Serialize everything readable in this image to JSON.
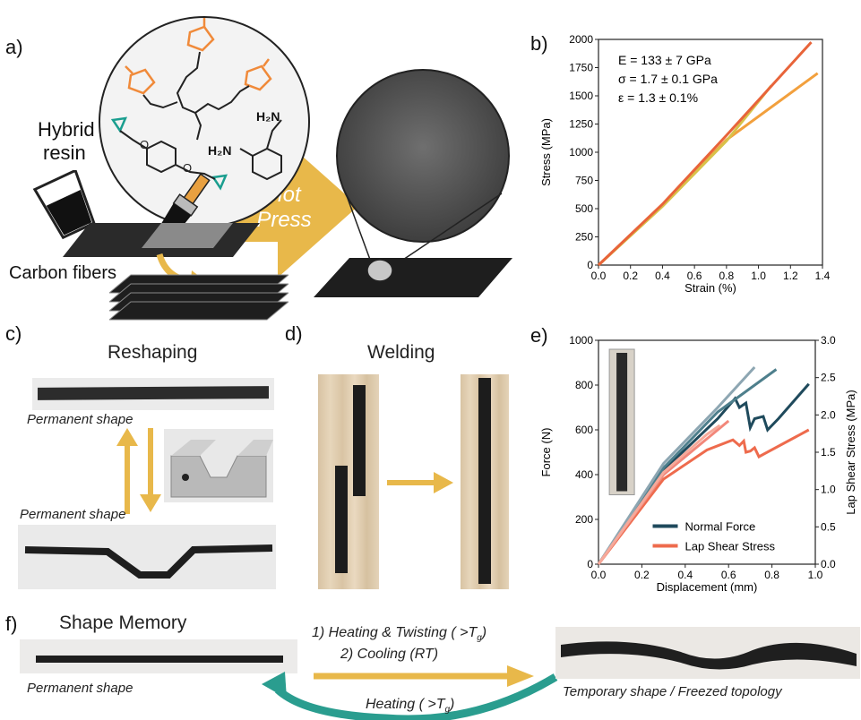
{
  "panels": {
    "a": {
      "label": "a)",
      "hybrid_resin_line1": "Hybrid",
      "hybrid_resin_line2": "resin",
      "carbon_fibers": "Carbon fibers",
      "hot_press_line1": "Hot",
      "hot_press_line2": "Press",
      "nh2_a": "H₂N",
      "nh2_b": "H₂N"
    },
    "b": {
      "label": "b)"
    },
    "c": {
      "label": "c)",
      "title": "Reshaping",
      "caption_top": "Permanent shape",
      "caption_bottom": "Permanent shape"
    },
    "d": {
      "label": "d)",
      "title": "Welding"
    },
    "e": {
      "label": "e)"
    },
    "f": {
      "label": "f)",
      "title": "Shape Memory",
      "step1": "1)  Heating & Twisting ( >T",
      "step2": "2)  Cooling (RT)",
      "return_label": "Heating ( >T",
      "sub_g": "g",
      "close_paren": ")",
      "caption_left": "Permanent shape",
      "caption_right": "Temporary shape / Freezed topology"
    }
  },
  "colors": {
    "orange_chem": "#f08a3a",
    "teal_chem": "#1a9e8f",
    "gold_arrow": "#e8b84a",
    "teal_arrow": "#2a9d8f",
    "navy": "#1f4a5c",
    "salmon": "#ee6b4d"
  },
  "chart_data": [
    {
      "type": "line",
      "xlabel": "Strain (%)",
      "ylabel": "Stress (MPa)",
      "xlim": [
        0.0,
        1.4
      ],
      "ylim": [
        0,
        2000
      ],
      "xticks": [
        "0.0",
        "0.2",
        "0.4",
        "0.6",
        "0.8",
        "1.0",
        "1.2",
        "1.4"
      ],
      "yticks": [
        "0",
        "250",
        "500",
        "750",
        "1000",
        "1250",
        "1500",
        "1750",
        "2000"
      ],
      "annotations": [
        "E = 133 ± 7 GPa",
        "σ = 1.7 ± 0.1 GPa",
        "ε = 1.3 ± 0.1%"
      ],
      "series": [
        {
          "color": "#f2a03d",
          "points": [
            [
              0,
              0
            ],
            [
              0.4,
              530
            ],
            [
              0.8,
              1110
            ],
            [
              1.37,
              1700
            ]
          ]
        },
        {
          "color": "#d8c24a",
          "points": [
            [
              0,
              0
            ],
            [
              0.4,
              520
            ],
            [
              0.8,
              1100
            ],
            [
              1.08,
              1590
            ]
          ]
        },
        {
          "color": "#e8643a",
          "points": [
            [
              0,
              0
            ],
            [
              0.4,
              540
            ],
            [
              0.8,
              1150
            ],
            [
              1.33,
              1975
            ]
          ]
        }
      ]
    },
    {
      "type": "line",
      "xlabel": "Displacement (mm)",
      "ylabel": "Force (N)",
      "ylabel_right": "Lap Shear Stress (MPa)",
      "xlim": [
        0.0,
        1.0
      ],
      "ylim": [
        0,
        1000
      ],
      "ylim_right": [
        0.0,
        3.0
      ],
      "xticks": [
        "0.0",
        "0.2",
        "0.4",
        "0.6",
        "0.8",
        "1.0"
      ],
      "yticks": [
        "0",
        "200",
        "400",
        "600",
        "800",
        "1000"
      ],
      "yticks_right": [
        "0.0",
        "0.5",
        "1.0",
        "1.5",
        "2.0",
        "2.5",
        "3.0"
      ],
      "legend": [
        "Normal Force",
        "Lap Shear Stress"
      ],
      "legend_placement": "bottom-right",
      "series": [
        {
          "name": "Normal Force",
          "color": "#1f4a5c",
          "points": [
            [
              0,
              0
            ],
            [
              0.3,
              420
            ],
            [
              0.55,
              650
            ],
            [
              0.63,
              740
            ],
            [
              0.65,
              700
            ],
            [
              0.68,
              720
            ],
            [
              0.7,
              610
            ],
            [
              0.72,
              650
            ],
            [
              0.76,
              660
            ],
            [
              0.78,
              600
            ],
            [
              0.83,
              650
            ],
            [
              0.97,
              805
            ]
          ]
        },
        {
          "name": "Normal Force",
          "color": "#4e7f8c",
          "points": [
            [
              0,
              0
            ],
            [
              0.3,
              430
            ],
            [
              0.55,
              680
            ],
            [
              0.82,
              870
            ]
          ]
        },
        {
          "name": "Normal Force",
          "color": "#8da6b2",
          "points": [
            [
              0,
              0
            ],
            [
              0.3,
              450
            ],
            [
              0.55,
              700
            ],
            [
              0.72,
              880
            ]
          ]
        },
        {
          "name": "Lap Shear Stress",
          "color": "#ee6b4d",
          "points": [
            [
              0,
              0
            ],
            [
              0.3,
              380
            ],
            [
              0.5,
              510
            ],
            [
              0.62,
              555
            ],
            [
              0.65,
              530
            ],
            [
              0.67,
              550
            ],
            [
              0.68,
              500
            ],
            [
              0.7,
              505
            ],
            [
              0.72,
              520
            ],
            [
              0.74,
              480
            ],
            [
              0.97,
              600
            ]
          ]
        },
        {
          "name": "Lap Shear Stress",
          "color": "#f2877a",
          "points": [
            [
              0,
              0
            ],
            [
              0.3,
              400
            ],
            [
              0.5,
              560
            ],
            [
              0.6,
              640
            ]
          ]
        },
        {
          "name": "Lap Shear Stress",
          "color": "#f6a99a",
          "points": [
            [
              0,
              0
            ],
            [
              0.3,
              410
            ],
            [
              0.5,
              580
            ],
            [
              0.56,
              620
            ]
          ]
        }
      ]
    }
  ]
}
